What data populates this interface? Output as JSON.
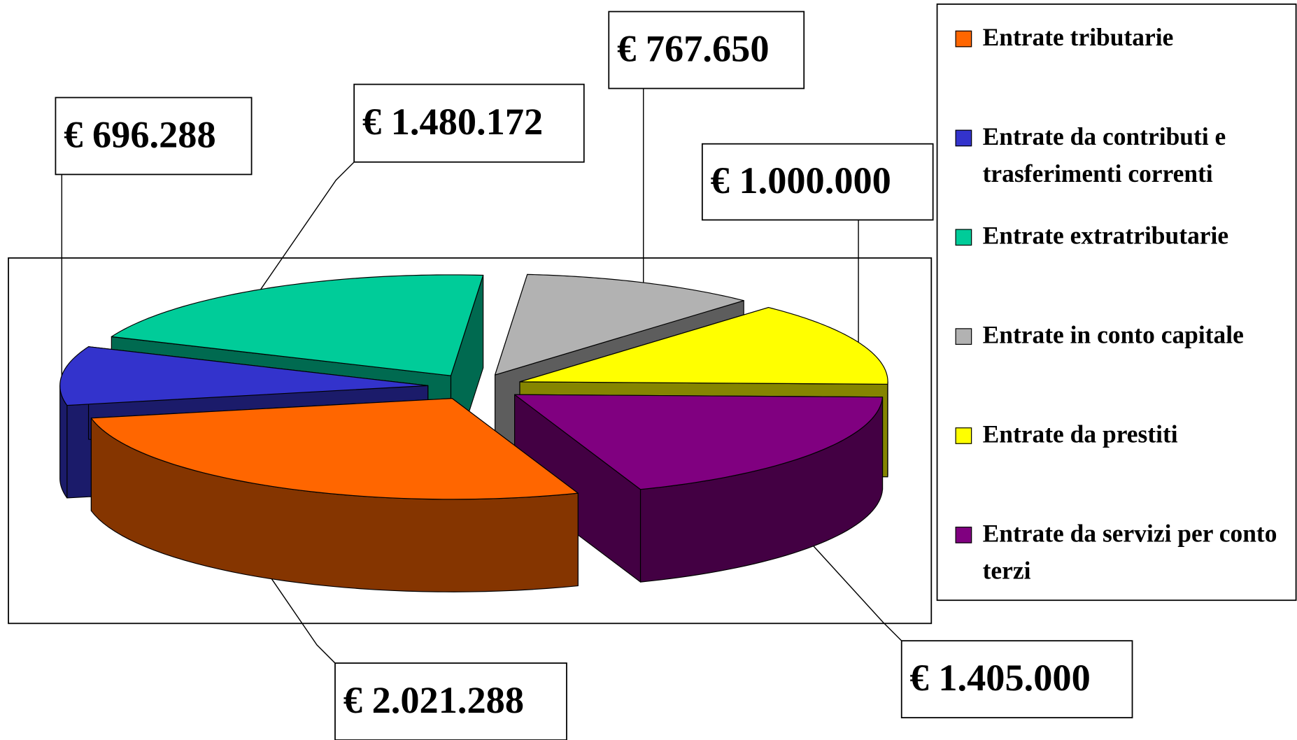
{
  "chart_data": {
    "type": "pie3d",
    "categories": [
      "Entrate tributarie",
      "Entrate da contributi e trasferimenti correnti",
      "Entrate extratributarie",
      "Entrate in conto capitale",
      "Entrate da prestiti",
      "Entrate da servizi per conto terzi"
    ],
    "values": [
      2021288,
      696288,
      1480172,
      767650,
      1000000,
      1405000
    ],
    "value_labels": [
      "€ 2.021.288",
      "€ 696.288",
      "€ 1.480.172",
      "€ 767.650",
      "€ 1.000.000",
      "€ 1.405.000"
    ],
    "colors": [
      "#ff6600",
      "#3333cc",
      "#00cc99",
      "#b2b2b2",
      "#ffff00",
      "#800080"
    ],
    "legend": "right"
  }
}
